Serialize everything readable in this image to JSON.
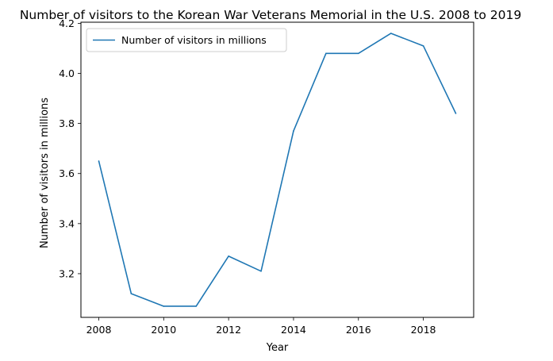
{
  "chart_data": {
    "type": "line",
    "title": "Number of visitors to the Korean War Veterans Memorial in the U.S. 2008 to 2019",
    "xlabel": "Year",
    "ylabel": "Number of visitors in millions",
    "x": [
      2008,
      2009,
      2010,
      2011,
      2012,
      2013,
      2014,
      2015,
      2016,
      2017,
      2018,
      2019
    ],
    "series": [
      {
        "name": "Number of visitors in millions",
        "color": "#1f77b4",
        "values": [
          3.65,
          3.12,
          3.07,
          3.07,
          3.27,
          3.21,
          3.77,
          4.08,
          4.08,
          4.16,
          4.11,
          3.84
        ]
      }
    ],
    "xlim": [
      2007.45,
      2019.55
    ],
    "ylim": [
      3.0255,
      4.2045
    ],
    "xticks": [
      2008,
      2010,
      2012,
      2014,
      2016,
      2018
    ],
    "yticks": [
      "3.2",
      "3.4",
      "3.6",
      "3.8",
      "4.0",
      "4.2"
    ],
    "grid": false,
    "legend_position": "upper-left"
  }
}
